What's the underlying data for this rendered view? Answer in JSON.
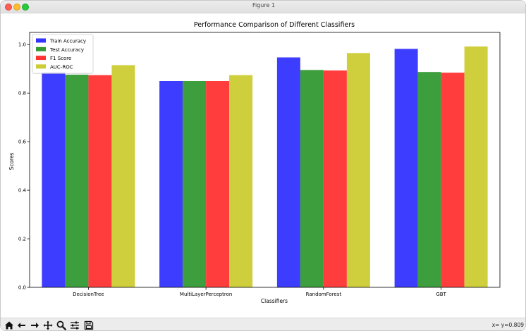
{
  "window": {
    "title": "Figure 1"
  },
  "toolbar": {
    "tools": [
      {
        "name": "home-icon"
      },
      {
        "name": "back-icon"
      },
      {
        "name": "forward-icon"
      },
      {
        "name": "pan-icon"
      },
      {
        "name": "zoom-icon"
      },
      {
        "name": "subplots-config-icon"
      },
      {
        "name": "save-icon"
      }
    ],
    "coords": "x= y=0.809"
  },
  "chart_data": {
    "type": "bar",
    "title": "Performance Comparison of Different Classifiers",
    "xlabel": "Classifiers",
    "ylabel": "Scores",
    "ylim": [
      0,
      1.05
    ],
    "yticks": [
      "0.0",
      "0.2",
      "0.4",
      "0.6",
      "0.8",
      "1.0"
    ],
    "ytick_values": [
      0,
      0.2,
      0.4,
      0.6,
      0.8,
      1.0
    ],
    "grid": false,
    "legend_position": "top-left",
    "categories": [
      "DecisionTree",
      "MultiLayerPerceptron",
      "RandomForest",
      "GBT"
    ],
    "series": [
      {
        "name": "Train Accuracy",
        "color": "#3333ff",
        "values": [
          0.885,
          0.85,
          0.947,
          0.982
        ]
      },
      {
        "name": "Test Accuracy",
        "color": "#339933",
        "values": [
          0.876,
          0.85,
          0.895,
          0.887
        ]
      },
      {
        "name": "F1 Score",
        "color": "#ff3333",
        "values": [
          0.874,
          0.85,
          0.893,
          0.884
        ]
      },
      {
        "name": "AUC-ROC",
        "color": "#cccc33",
        "values": [
          0.915,
          0.874,
          0.965,
          0.992
        ]
      }
    ]
  }
}
